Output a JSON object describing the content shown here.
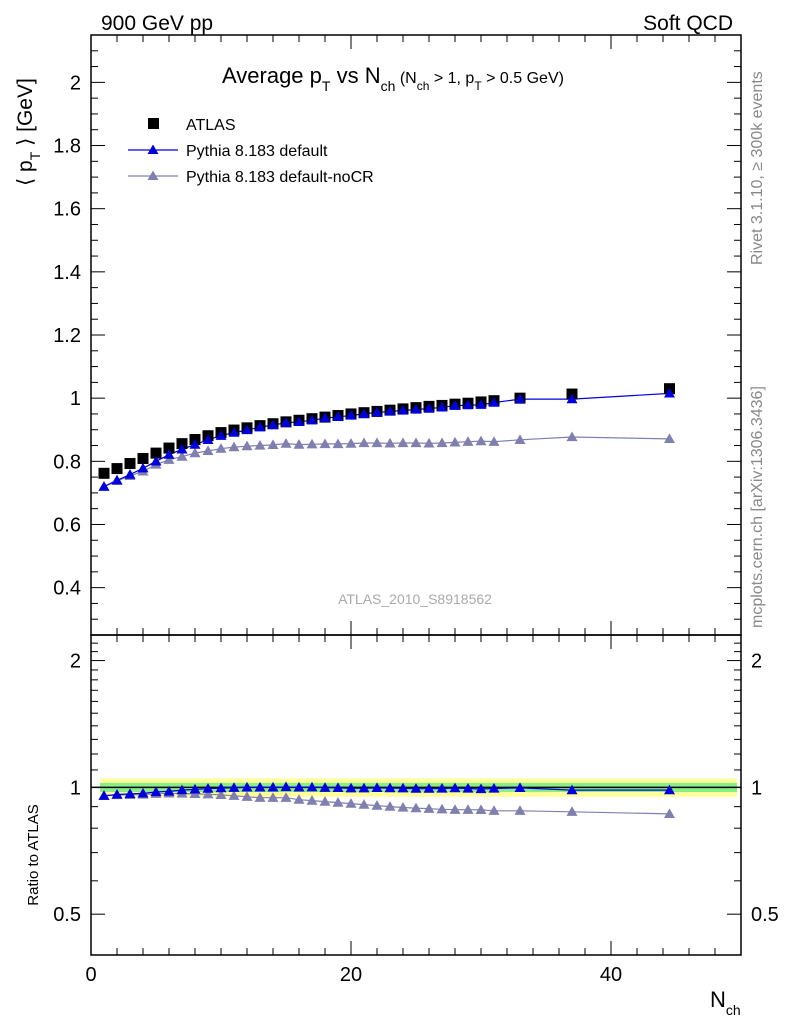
{
  "header": {
    "left": "900 GeV pp",
    "right": "Soft QCD"
  },
  "side": {
    "rivet": "Rivet 3.1.10, ≥ 300k events",
    "mcplots": "mcplots.cern.ch [arXiv:1306.3436]"
  },
  "title": {
    "main": "Average p",
    "main_sub": "T",
    "mid": " vs N",
    "mid_sub": "ch",
    "cond_a": " (N",
    "cond_a_sub": "ch",
    "cond_b": " > 1, p",
    "cond_b_sub": "T",
    "cond_c": " > 0.5 GeV)"
  },
  "watermark": "ATLAS_2010_S8918562",
  "ylabel": {
    "pre": "⟨ p",
    "sub": "T",
    "post": " ⟩ [GeV]"
  },
  "ratio_ylabel": "Ratio to ATLAS",
  "xlabel": {
    "main": "N",
    "sub": "ch"
  },
  "colors": {
    "atlas": "#000000",
    "default": "#0000dd",
    "noCR": "#7f7fb0",
    "band_inner": "#88ee88",
    "band_outer": "#ffff99"
  },
  "chart_data": [
    {
      "type": "scatter",
      "panel": "main",
      "xlim": [
        0,
        50
      ],
      "ylim": [
        0.25,
        2.15
      ],
      "x_ticks": [
        0,
        20,
        40
      ],
      "y_ticks": [
        0.4,
        0.6,
        0.8,
        1,
        1.2,
        1.4,
        1.6,
        1.8,
        2
      ],
      "y_tick_labels": [
        "0.4",
        "0.6",
        "0.8",
        "1",
        "1.2",
        "1.4",
        "1.6",
        "1.8",
        "2"
      ],
      "legend": [
        "ATLAS",
        "Pythia 8.183 default",
        "Pythia 8.183 default-noCR"
      ],
      "legend_position": "top-left",
      "x": [
        1,
        2,
        3,
        4,
        5,
        6,
        7,
        8,
        9,
        10,
        11,
        12,
        13,
        14,
        15,
        16,
        17,
        18,
        19,
        20,
        21,
        22,
        23,
        24,
        25,
        26,
        27,
        28,
        29,
        30,
        31,
        33,
        37,
        44.5
      ],
      "series": [
        {
          "name": "ATLAS",
          "marker": "square",
          "values": [
            0.762,
            0.777,
            0.793,
            0.809,
            0.826,
            0.842,
            0.856,
            0.869,
            0.881,
            0.891,
            0.899,
            0.906,
            0.913,
            0.919,
            0.925,
            0.93,
            0.935,
            0.94,
            0.945,
            0.95,
            0.954,
            0.958,
            0.962,
            0.966,
            0.97,
            0.974,
            0.977,
            0.981,
            0.984,
            0.988,
            0.992,
            1.0,
            1.013,
            1.03
          ]
        },
        {
          "name": "Pythia 8.183 default",
          "marker": "triangle",
          "values": [
            0.72,
            0.74,
            0.758,
            0.778,
            0.8,
            0.821,
            0.838,
            0.853,
            0.868,
            0.881,
            0.891,
            0.899,
            0.908,
            0.915,
            0.922,
            0.925,
            0.93,
            0.937,
            0.941,
            0.945,
            0.95,
            0.955,
            0.958,
            0.961,
            0.964,
            0.967,
            0.971,
            0.976,
            0.978,
            0.979,
            0.986,
            0.997,
            0.997,
            1.015
          ]
        },
        {
          "name": "Pythia 8.183 default-noCR",
          "marker": "triangle",
          "values": [
            0.72,
            0.738,
            0.754,
            0.768,
            0.79,
            0.805,
            0.815,
            0.826,
            0.833,
            0.84,
            0.845,
            0.848,
            0.85,
            0.852,
            0.856,
            0.853,
            0.854,
            0.855,
            0.855,
            0.856,
            0.858,
            0.858,
            0.857,
            0.858,
            0.858,
            0.857,
            0.858,
            0.86,
            0.862,
            0.864,
            0.862,
            0.868,
            0.877,
            0.871
          ]
        }
      ]
    },
    {
      "type": "scatter",
      "panel": "ratio",
      "xlim": [
        0,
        50
      ],
      "ylim": [
        0.4,
        2.3
      ],
      "yscale": "log",
      "x_ticks": [
        0,
        20,
        40
      ],
      "x_tick_labels": [
        "0",
        "20",
        "40"
      ],
      "y_ticks": [
        0.5,
        1,
        2
      ],
      "y_tick_labels": [
        "0.5",
        "1",
        "2"
      ],
      "reference": 1,
      "band_inner": [
        0.975,
        1.025
      ],
      "band_outer": [
        0.95,
        1.05
      ],
      "x": [
        1,
        2,
        3,
        4,
        5,
        6,
        7,
        8,
        9,
        10,
        11,
        12,
        13,
        14,
        15,
        16,
        17,
        18,
        19,
        20,
        21,
        22,
        23,
        24,
        25,
        26,
        27,
        28,
        29,
        30,
        31,
        33,
        37,
        44.5
      ],
      "series": [
        {
          "name": "Pythia 8.183 default",
          "marker": "triangle",
          "values": [
            0.955,
            0.962,
            0.965,
            0.968,
            0.975,
            0.978,
            0.985,
            0.989,
            0.993,
            0.996,
            0.998,
            1.0,
            1.0,
            1.0,
            1.002,
            1.0,
            1.001,
            0.998,
            0.997,
            0.995,
            0.995,
            0.997,
            0.996,
            0.995,
            0.993,
            0.993,
            0.994,
            0.996,
            0.994,
            0.991,
            0.994,
            0.997,
            0.985,
            0.985
          ]
        },
        {
          "name": "Pythia 8.183 default-noCR",
          "marker": "triangle",
          "values": [
            0.955,
            0.959,
            0.96,
            0.962,
            0.966,
            0.968,
            0.967,
            0.965,
            0.963,
            0.96,
            0.955,
            0.95,
            0.945,
            0.945,
            0.945,
            0.935,
            0.93,
            0.925,
            0.92,
            0.915,
            0.91,
            0.905,
            0.9,
            0.896,
            0.893,
            0.89,
            0.887,
            0.885,
            0.885,
            0.884,
            0.88,
            0.88,
            0.875,
            0.865
          ]
        }
      ]
    }
  ]
}
